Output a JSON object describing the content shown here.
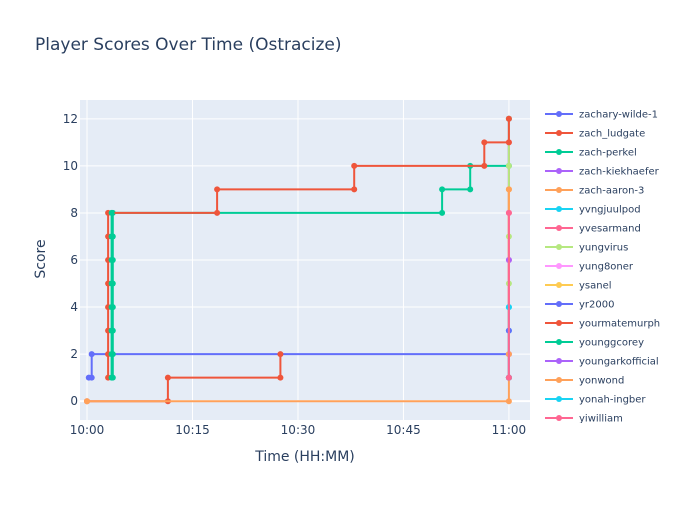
{
  "chart_data": {
    "type": "line",
    "line_shape": "step",
    "title": "Player Scores Over Time (Ostracize)",
    "xlabel": "Time (HH:MM)",
    "ylabel": "Score",
    "xlim": [
      "09:59:00",
      "11:03:00"
    ],
    "ylim": [
      -0.8,
      12.8
    ],
    "x_ticks": [
      "10:00",
      "10:15",
      "10:30",
      "10:45",
      "11:00"
    ],
    "y_ticks": [
      0,
      2,
      4,
      6,
      8,
      10,
      12
    ],
    "grid": true,
    "plot_background": "#E5ECF6",
    "legend_position": "right",
    "series": [
      {
        "name": "zachary-wilde-1",
        "color": "#636efa",
        "points": [
          [
            "10:00:15",
            1
          ],
          [
            "10:00:40",
            1
          ],
          [
            "10:00:40",
            2
          ],
          [
            "11:00:00",
            2
          ]
        ]
      },
      {
        "name": "zach_ludgate",
        "color": "#EF553B",
        "points": [
          [
            "10:00:00",
            0
          ],
          [
            "10:11:30",
            0
          ],
          [
            "10:11:30",
            1
          ],
          [
            "10:27:30",
            1
          ],
          [
            "10:27:30",
            2
          ]
        ]
      },
      {
        "name": "zach-perkel",
        "color": "#00cc96",
        "points": [
          [
            "10:03:40",
            1
          ],
          [
            "10:03:40",
            2
          ],
          [
            "10:03:40",
            3
          ],
          [
            "10:03:40",
            4
          ],
          [
            "10:03:40",
            5
          ],
          [
            "10:03:40",
            6
          ],
          [
            "10:03:40",
            7
          ],
          [
            "10:03:40",
            8
          ],
          [
            "10:50:30",
            8
          ],
          [
            "10:50:30",
            9
          ],
          [
            "10:54:30",
            9
          ],
          [
            "10:54:30",
            10
          ],
          [
            "11:00:00",
            10
          ],
          [
            "11:00:00",
            12
          ]
        ]
      },
      {
        "name": "zach-kiekhaefer",
        "color": "#ab63fa",
        "points": [
          [
            "11:00:00",
            1
          ],
          [
            "11:00:00",
            12
          ]
        ]
      },
      {
        "name": "zach-aaron-3",
        "color": "#FFA15A",
        "points": [
          [
            "10:00:00",
            0
          ],
          [
            "11:00:00",
            0
          ],
          [
            "11:00:00",
            1
          ],
          [
            "11:00:00",
            2
          ],
          [
            "11:00:00",
            9
          ]
        ]
      },
      {
        "name": "yvngjuulpod",
        "color": "#19d3f3",
        "points": [
          [
            "11:00:00",
            1
          ],
          [
            "11:00:00",
            3
          ],
          [
            "11:00:00",
            4
          ]
        ]
      },
      {
        "name": "yvesarmand",
        "color": "#FF6692",
        "points": [
          [
            "11:00:00",
            1
          ],
          [
            "11:00:00",
            6
          ],
          [
            "11:00:00",
            8
          ],
          [
            "11:00:00",
            11
          ]
        ]
      },
      {
        "name": "yungvirus",
        "color": "#B6E880",
        "points": [
          [
            "11:00:00",
            1
          ],
          [
            "11:00:00",
            5
          ],
          [
            "11:00:00",
            7
          ],
          [
            "11:00:00",
            10
          ],
          [
            "11:00:00",
            12
          ]
        ]
      },
      {
        "name": "yung8oner",
        "color": "#FF97FF",
        "points": [
          [
            "11:00:00",
            1
          ],
          [
            "11:00:00",
            2
          ]
        ]
      },
      {
        "name": "ysanel",
        "color": "#FECB52",
        "points": [
          [
            "11:00:00",
            1
          ],
          [
            "11:00:00",
            9
          ]
        ]
      },
      {
        "name": "yr2000",
        "color": "#636efa",
        "points": [
          [
            "11:00:00",
            1
          ],
          [
            "11:00:00",
            3
          ]
        ]
      },
      {
        "name": "yourmatemurph",
        "color": "#EF553B",
        "points": [
          [
            "10:03:00",
            1
          ],
          [
            "10:03:00",
            2
          ],
          [
            "10:03:00",
            3
          ],
          [
            "10:03:00",
            4
          ],
          [
            "10:03:00",
            5
          ],
          [
            "10:03:00",
            6
          ],
          [
            "10:03:00",
            7
          ],
          [
            "10:03:00",
            8
          ],
          [
            "10:18:30",
            8
          ],
          [
            "10:18:30",
            9
          ],
          [
            "10:38:00",
            9
          ],
          [
            "10:38:00",
            10
          ],
          [
            "10:56:30",
            10
          ],
          [
            "10:56:30",
            11
          ],
          [
            "11:00:00",
            11
          ],
          [
            "11:00:00",
            12
          ]
        ]
      },
      {
        "name": "younggcorey",
        "color": "#00cc96",
        "points": [
          [
            "10:03:30",
            1
          ],
          [
            "10:03:30",
            2
          ],
          [
            "10:03:30",
            3
          ],
          [
            "10:03:30",
            4
          ],
          [
            "10:03:30",
            5
          ],
          [
            "10:03:30",
            6
          ],
          [
            "10:03:30",
            7
          ],
          [
            "10:03:30",
            8
          ]
        ]
      },
      {
        "name": "youngarkofficial",
        "color": "#ab63fa",
        "points": [
          [
            "11:00:00",
            1
          ],
          [
            "11:00:00",
            6
          ]
        ]
      },
      {
        "name": "yonwond",
        "color": "#FFA15A",
        "points": [
          [
            "11:00:00",
            1
          ],
          [
            "11:00:00",
            2
          ],
          [
            "11:00:00",
            9
          ]
        ]
      },
      {
        "name": "yonah-ingber",
        "color": "#19d3f3",
        "points": [
          [
            "11:00:00",
            1
          ],
          [
            "11:00:00",
            4
          ]
        ]
      },
      {
        "name": "yiwilliam",
        "color": "#FF6692",
        "points": [
          [
            "11:00:00",
            1
          ],
          [
            "11:00:00",
            8
          ]
        ]
      }
    ]
  }
}
